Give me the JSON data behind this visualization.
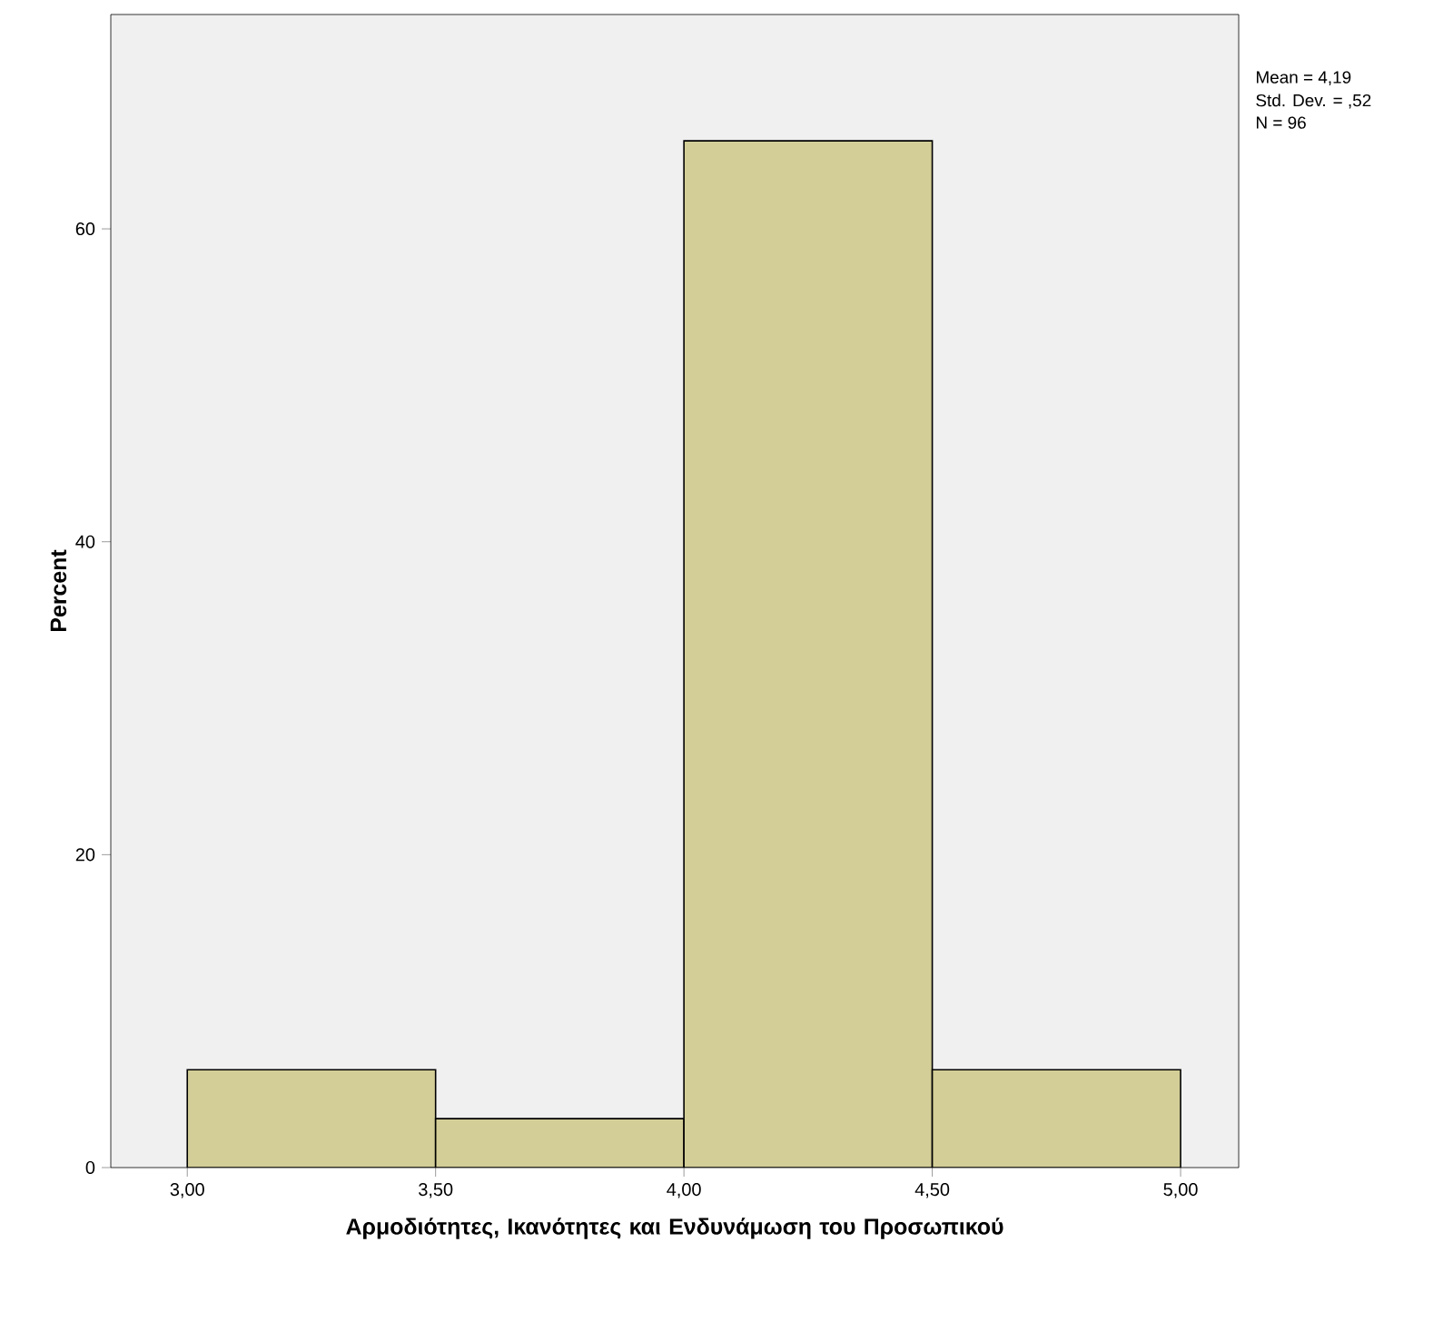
{
  "chart_data": {
    "type": "histogram",
    "xlabel": "Αρμοδιότητες, Ικανότητες και Ενδυνάμωση του Προσωπικού",
    "ylabel": "Percent",
    "bins": [
      3.0,
      3.5,
      4.0,
      4.5,
      5.0
    ],
    "values": [
      6.25,
      3.125,
      65.625,
      6.25
    ],
    "color": "#d3ce97",
    "xlim": [
      2.846,
      5.117
    ],
    "ylim": [
      0,
      73.7
    ],
    "xticks": [
      {
        "value": 3.0,
        "label": "3,00"
      },
      {
        "value": 3.5,
        "label": "3,50"
      },
      {
        "value": 4.0,
        "label": "4,00"
      },
      {
        "value": 4.5,
        "label": "4,50"
      },
      {
        "value": 5.0,
        "label": "5,00"
      }
    ],
    "yticks": [
      0,
      20,
      40,
      60
    ],
    "annotations": [
      "Mean = 4,19",
      "Std. Dev. = ,52",
      "N = 96"
    ]
  }
}
